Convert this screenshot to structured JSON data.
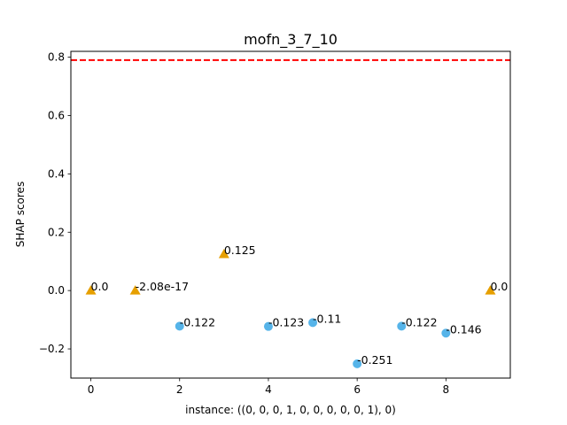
{
  "chart_data": {
    "type": "scatter",
    "title": "mofn_3_7_10",
    "xlabel": "instance: ((0, 0, 0, 1, 0, 0, 0, 0, 0, 1), 0)",
    "ylabel": "SHAP scores",
    "xlim": [
      -0.45,
      9.45
    ],
    "ylim": [
      -0.3,
      0.82
    ],
    "xticks": [
      0,
      2,
      4,
      6,
      8
    ],
    "xtick_labels": [
      "0",
      "2",
      "4",
      "6",
      "8"
    ],
    "yticks": [
      -0.2,
      0.0,
      0.2,
      0.4,
      0.6,
      0.8
    ],
    "ytick_labels": [
      "−0.2",
      "0.0",
      "0.2",
      "0.4",
      "0.6",
      "0.8"
    ],
    "grid": false,
    "reference_line": {
      "y": 0.79,
      "color": "#ff0000",
      "style": "dashed"
    },
    "series": [
      {
        "marker": "triangle",
        "color": "#e69f00",
        "points": [
          {
            "x": 0,
            "y": 0.0,
            "label": "0.0"
          },
          {
            "x": 1,
            "y": 0.0,
            "label": "-2.08e-17"
          },
          {
            "x": 3,
            "y": 0.125,
            "label": "0.125"
          },
          {
            "x": 9,
            "y": 0.0,
            "label": "0.0"
          }
        ]
      },
      {
        "marker": "circle",
        "color": "#56b4e9",
        "points": [
          {
            "x": 2,
            "y": -0.122,
            "label": "-0.122"
          },
          {
            "x": 4,
            "y": -0.123,
            "label": "-0.123"
          },
          {
            "x": 5,
            "y": -0.11,
            "label": "-0.11"
          },
          {
            "x": 6,
            "y": -0.251,
            "label": "-0.251"
          },
          {
            "x": 7,
            "y": -0.122,
            "label": "-0.122"
          },
          {
            "x": 8,
            "y": -0.146,
            "label": "-0.146"
          }
        ]
      }
    ]
  }
}
